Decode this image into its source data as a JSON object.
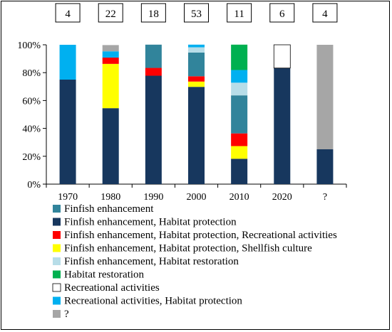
{
  "chart_data": {
    "type": "bar",
    "stacked": true,
    "normalized": true,
    "categories": [
      "1970",
      "1980",
      "1990",
      "2000",
      "2010",
      "2020",
      "?"
    ],
    "counts": [
      "4",
      "22",
      "18",
      "53",
      "11",
      "6",
      "4"
    ],
    "ylim": [
      0,
      100
    ],
    "y_ticks": [
      "0%",
      "20%",
      "40%",
      "60%",
      "80%",
      "100%"
    ],
    "legend_position": "bottom",
    "series": [
      {
        "name": "Finfish enhancement",
        "color": "#31849b",
        "values": [
          0,
          0,
          16.7,
          17.0,
          27.3,
          0,
          0
        ]
      },
      {
        "name": "Finfish enhancement, Habitat protection",
        "color": "#17375e",
        "values": [
          75,
          54.5,
          77.8,
          69.8,
          18.2,
          83.3,
          25
        ]
      },
      {
        "name": "Finfish enhancement, Habitat protection, Recreational activities",
        "color": "#ff0000",
        "values": [
          0,
          4.5,
          5.6,
          3.8,
          9.1,
          0,
          0
        ]
      },
      {
        "name": "Finfish enhancement, Habitat protection, Shellfish culture",
        "color": "#ffff00",
        "values": [
          0,
          31.8,
          0,
          3.8,
          9.1,
          0,
          0
        ]
      },
      {
        "name": "Finfish enhancement, Habitat restoration",
        "color": "#b7dde8",
        "values": [
          0,
          0,
          0,
          3.8,
          9.1,
          0,
          0
        ]
      },
      {
        "name": "Habitat restoration",
        "color": "#00b050",
        "values": [
          0,
          0,
          0,
          0,
          18.2,
          0,
          0
        ]
      },
      {
        "name": "Recreational activities",
        "color": "#ffffff",
        "values": [
          0,
          0,
          0,
          0,
          0,
          16.7,
          0
        ]
      },
      {
        "name": "Recreational activities, Habitat protection",
        "color": "#00b0f0",
        "values": [
          25,
          4.5,
          0,
          1.9,
          9.1,
          0,
          0
        ]
      },
      {
        "name": "?",
        "color": "#a6a6a6",
        "values": [
          0,
          4.5,
          0,
          0,
          0,
          0,
          75
        ]
      }
    ],
    "stack_order": [
      1,
      3,
      2,
      0,
      4,
      7,
      5,
      6,
      8
    ],
    "legend_order": [
      0,
      1,
      2,
      3,
      4,
      5,
      6,
      7,
      8
    ]
  }
}
